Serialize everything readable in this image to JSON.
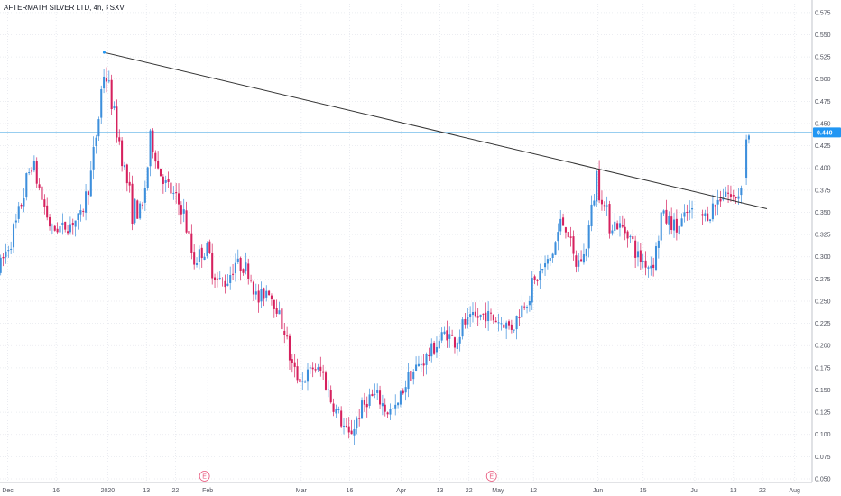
{
  "chart_data": {
    "type": "candlestick",
    "title": "AFTERMATH SILVER LTD, 4h, TSXV",
    "interval": "4h",
    "y_ticks": [
      "0.575",
      "0.550",
      "0.525",
      "0.500",
      "0.475",
      "0.450",
      "0.425",
      "0.400",
      "0.375",
      "0.350",
      "0.325",
      "0.300",
      "0.275",
      "0.250",
      "0.225",
      "0.200",
      "0.175",
      "0.150",
      "0.125",
      "0.100",
      "0.075",
      "0.050"
    ],
    "ylim": [
      0.05,
      0.585
    ],
    "x_ticks": [
      {
        "label": "Dec",
        "t": 0.6
      },
      {
        "label": "16",
        "t": 15.6
      },
      {
        "label": "2020",
        "t": 31.6
      },
      {
        "label": "13",
        "t": 43.6
      },
      {
        "label": "22",
        "t": 52.6
      },
      {
        "label": "Feb",
        "t": 62.6
      },
      {
        "label": "Mar",
        "t": 91.6
      },
      {
        "label": "16",
        "t": 106.6
      },
      {
        "label": "Apr",
        "t": 122.6
      },
      {
        "label": "13",
        "t": 134.6
      },
      {
        "label": "22",
        "t": 143.6
      },
      {
        "label": "May",
        "t": 152.6
      },
      {
        "label": "12",
        "t": 163.6
      },
      {
        "label": "Jun",
        "t": 183.6
      },
      {
        "label": "15",
        "t": 197.6
      },
      {
        "label": "Jul",
        "t": 213.6
      },
      {
        "label": "13",
        "t": 225.6
      },
      {
        "label": "22",
        "t": 234.6
      },
      {
        "label": "Aug",
        "t": 244.6
      }
    ],
    "xlim": [
      -1.8,
      250
    ],
    "current_price": {
      "label": "0.440",
      "value": 0.44,
      "color": "#2196f3"
    },
    "horizontal_line": {
      "value": 0.44,
      "color": "#5ab0e8"
    },
    "trendline": {
      "from": {
        "t": 30.5,
        "value": 0.53
      },
      "to": {
        "t": 236,
        "value": 0.354
      },
      "color": "#333333"
    },
    "earnings_markers": [
      {
        "label": "E",
        "t": 61.6
      },
      {
        "label": "E",
        "t": 150.6
      }
    ],
    "up_color": "#3d8fdc",
    "down_color": "#d6215e",
    "key_points": [
      {
        "t": -2,
        "v": 0.28
      },
      {
        "t": 3,
        "v": 0.325
      },
      {
        "t": 6,
        "v": 0.365
      },
      {
        "t": 9,
        "v": 0.41
      },
      {
        "t": 12,
        "v": 0.365
      },
      {
        "t": 15,
        "v": 0.33
      },
      {
        "t": 20,
        "v": 0.335
      },
      {
        "t": 24,
        "v": 0.345
      },
      {
        "t": 27,
        "v": 0.385
      },
      {
        "t": 30,
        "v": 0.47
      },
      {
        "t": 31,
        "v": 0.51
      },
      {
        "t": 33,
        "v": 0.49
      },
      {
        "t": 36,
        "v": 0.43
      },
      {
        "t": 40,
        "v": 0.355
      },
      {
        "t": 43,
        "v": 0.35
      },
      {
        "t": 45,
        "v": 0.41
      },
      {
        "t": 46,
        "v": 0.435
      },
      {
        "t": 48,
        "v": 0.4
      },
      {
        "t": 50,
        "v": 0.385
      },
      {
        "t": 56,
        "v": 0.35
      },
      {
        "t": 59,
        "v": 0.295
      },
      {
        "t": 63,
        "v": 0.31
      },
      {
        "t": 66,
        "v": 0.275
      },
      {
        "t": 69,
        "v": 0.27
      },
      {
        "t": 72,
        "v": 0.295
      },
      {
        "t": 76,
        "v": 0.285
      },
      {
        "t": 79,
        "v": 0.25
      },
      {
        "t": 82,
        "v": 0.265
      },
      {
        "t": 85,
        "v": 0.24
      },
      {
        "t": 87,
        "v": 0.22
      },
      {
        "t": 90,
        "v": 0.17
      },
      {
        "t": 93,
        "v": 0.16
      },
      {
        "t": 96,
        "v": 0.175
      },
      {
        "t": 99,
        "v": 0.17
      },
      {
        "t": 102,
        "v": 0.135
      },
      {
        "t": 105,
        "v": 0.115
      },
      {
        "t": 107,
        "v": 0.095
      },
      {
        "t": 110,
        "v": 0.12
      },
      {
        "t": 113,
        "v": 0.14
      },
      {
        "t": 116,
        "v": 0.145
      },
      {
        "t": 119,
        "v": 0.125
      },
      {
        "t": 122,
        "v": 0.13
      },
      {
        "t": 125,
        "v": 0.16
      },
      {
        "t": 128,
        "v": 0.175
      },
      {
        "t": 131,
        "v": 0.185
      },
      {
        "t": 134,
        "v": 0.2
      },
      {
        "t": 137,
        "v": 0.215
      },
      {
        "t": 140,
        "v": 0.205
      },
      {
        "t": 143,
        "v": 0.225
      },
      {
        "t": 146,
        "v": 0.23
      },
      {
        "t": 149,
        "v": 0.235
      },
      {
        "t": 152,
        "v": 0.23
      },
      {
        "t": 155,
        "v": 0.225
      },
      {
        "t": 158,
        "v": 0.22
      },
      {
        "t": 161,
        "v": 0.245
      },
      {
        "t": 164,
        "v": 0.265
      },
      {
        "t": 167,
        "v": 0.285
      },
      {
        "t": 170,
        "v": 0.3
      },
      {
        "t": 173,
        "v": 0.34
      },
      {
        "t": 175,
        "v": 0.33
      },
      {
        "t": 177,
        "v": 0.29
      },
      {
        "t": 180,
        "v": 0.3
      },
      {
        "t": 182,
        "v": 0.34
      },
      {
        "t": 184,
        "v": 0.39
      },
      {
        "t": 186,
        "v": 0.36
      },
      {
        "t": 188,
        "v": 0.34
      },
      {
        "t": 191,
        "v": 0.335
      },
      {
        "t": 194,
        "v": 0.325
      },
      {
        "t": 197,
        "v": 0.3
      },
      {
        "t": 200,
        "v": 0.29
      },
      {
        "t": 202,
        "v": 0.295
      },
      {
        "t": 204,
        "v": 0.345
      },
      {
        "t": 207,
        "v": 0.34
      },
      {
        "t": 209,
        "v": 0.33
      },
      {
        "t": 212,
        "v": 0.35
      },
      {
        "t": 215,
        "v": 0.35
      },
      {
        "t": 218,
        "v": 0.345
      },
      {
        "t": 221,
        "v": 0.36
      },
      {
        "t": 224,
        "v": 0.375
      },
      {
        "t": 226,
        "v": 0.365
      },
      {
        "t": 228,
        "v": 0.37
      },
      {
        "t": 230,
        "v": 0.42
      },
      {
        "t": 231,
        "v": 0.44
      }
    ],
    "gaps": [
      [
        213.2,
        215.6
      ],
      [
        228.4,
        229.6
      ]
    ]
  }
}
